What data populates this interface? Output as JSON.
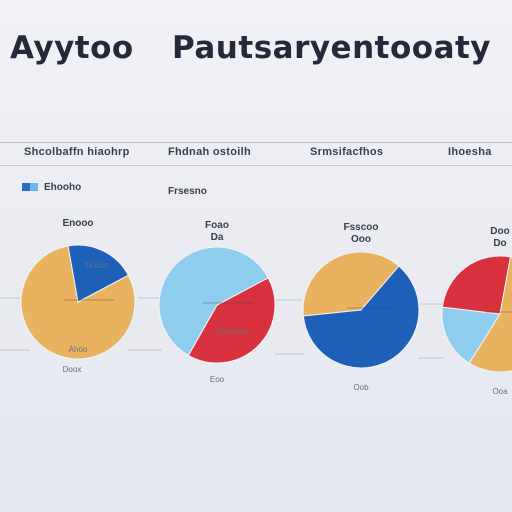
{
  "title": {
    "left": "Ayytoo",
    "right": "Pautsaryentooaty"
  },
  "column_headers": [
    "Shcolbaffn hiaohrp",
    "Fhdnah ostoilh",
    "Srmsifacfhos",
    "Ihoesha"
  ],
  "legend": {
    "label": "Ehooho",
    "colors": [
      "#2b6cc4",
      "#6fb9e8"
    ]
  },
  "sublabel": "Frsesno",
  "chart_data": [
    {
      "type": "pie",
      "title": "Enooo",
      "subtitle": "",
      "slices": [
        {
          "label": "",
          "value": 80,
          "color": "#e9b25f"
        },
        {
          "label": "",
          "value": 20,
          "color": "#1e60b8"
        }
      ],
      "annotation": "Ticcon",
      "footnote": "Doox",
      "caption": "Ahoo"
    },
    {
      "type": "pie",
      "title": "Foao",
      "subtitle": "Da",
      "slices": [
        {
          "label": "",
          "value": 41,
          "color": "#d8323f"
        },
        {
          "label": "",
          "value": 59,
          "color": "#8fcdee"
        }
      ],
      "annotation": "Oodenoo",
      "footnote": "",
      "caption": "Eoo"
    },
    {
      "type": "pie",
      "title": "Fsscoo",
      "subtitle": "Ooo",
      "slices": [
        {
          "label": "",
          "value": 38,
          "color": "#e9b25f"
        },
        {
          "label": "",
          "value": 62,
          "color": "#1e60b8"
        }
      ],
      "annotation": "",
      "footnote": "",
      "caption": "Oob"
    },
    {
      "type": "pie",
      "title": "Doo",
      "subtitle": "Do",
      "slices": [
        {
          "label": "",
          "value": 18,
          "color": "#8fcdee"
        },
        {
          "label": "",
          "value": 26,
          "color": "#d8323f"
        },
        {
          "label": "",
          "value": 56,
          "color": "#e9b25f"
        }
      ],
      "annotation": "",
      "footnote": "",
      "caption": "Ooa"
    }
  ]
}
